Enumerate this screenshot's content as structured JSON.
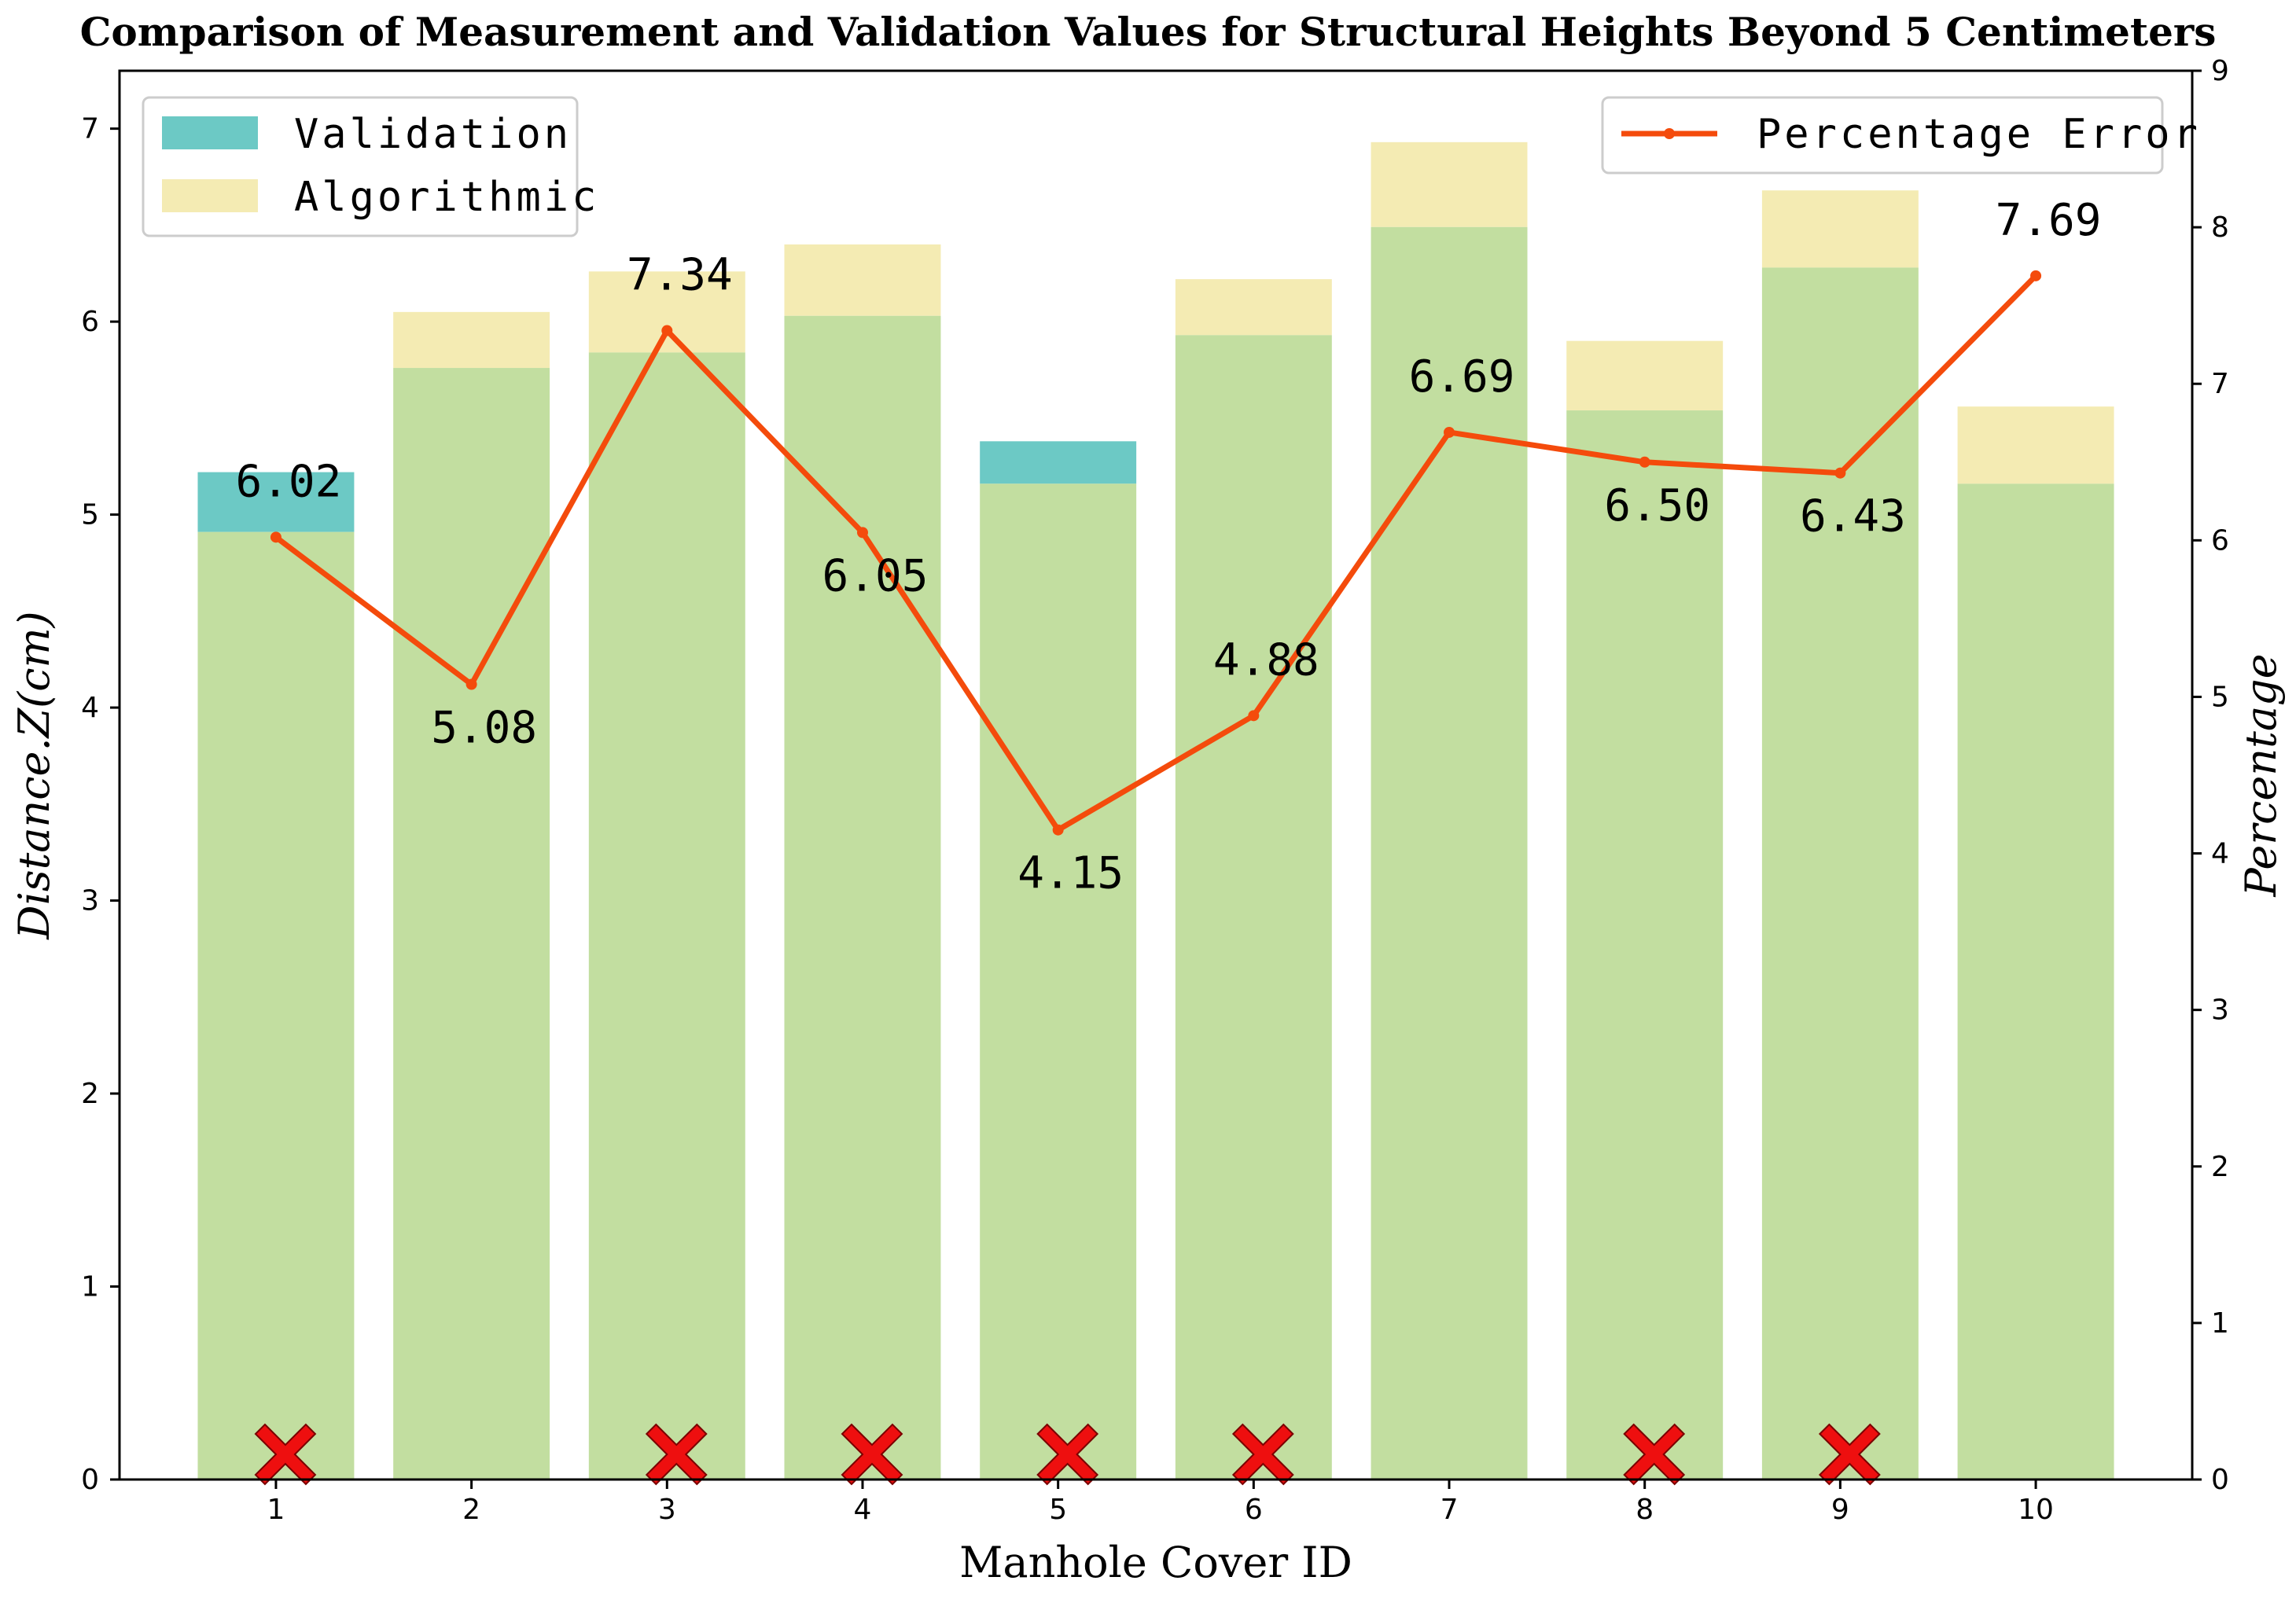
{
  "chart_data": {
    "type": "bar",
    "title": "Comparison of Measurement and Validation Values for Structural Heights Beyond 5 Centimeters",
    "xlabel": "Manhole Cover ID",
    "ylabel": "Distance.Z(cm)",
    "y2label": "Percentage",
    "categories": [
      "1",
      "2",
      "3",
      "4",
      "5",
      "6",
      "7",
      "8",
      "9",
      "10"
    ],
    "ylim": [
      0,
      7.3
    ],
    "y2lim": [
      0,
      9
    ],
    "yticks": [
      0,
      1,
      2,
      3,
      4,
      5,
      6,
      7
    ],
    "y2ticks": [
      0,
      1,
      2,
      3,
      4,
      5,
      6,
      7,
      8,
      9
    ],
    "series": [
      {
        "name": "Validation",
        "axis": "left",
        "color": "#6cc9c5",
        "values": [
          5.22,
          5.76,
          5.84,
          6.03,
          5.38,
          5.93,
          6.49,
          5.54,
          6.28,
          5.16
        ]
      },
      {
        "name": "Algorithmic",
        "axis": "left",
        "color": "#f4ebb3",
        "values": [
          4.91,
          6.05,
          6.26,
          6.4,
          5.16,
          6.22,
          6.93,
          5.9,
          6.68,
          5.56
        ]
      },
      {
        "name": "Percentage Error",
        "axis": "right",
        "type": "line",
        "color": "#f44b0c",
        "values": [
          6.02,
          5.08,
          7.34,
          6.05,
          4.15,
          4.88,
          6.69,
          6.5,
          6.43,
          7.69
        ],
        "labels": [
          "6.02",
          "5.08",
          "7.34",
          "6.05",
          "4.15",
          "4.88",
          "6.69",
          "6.50",
          "6.43",
          "7.69"
        ]
      }
    ],
    "overlap_color": "#c2dea0",
    "error_markers": [
      "1",
      "3",
      "4",
      "5",
      "6",
      "8",
      "9"
    ],
    "error_marker_color": "#ee0f0f",
    "legend_left": {
      "placement": "top-left",
      "entries": [
        "Validation",
        "Algorithmic"
      ]
    },
    "legend_right": {
      "placement": "top-right",
      "entries": [
        "Percentage Error"
      ]
    }
  }
}
